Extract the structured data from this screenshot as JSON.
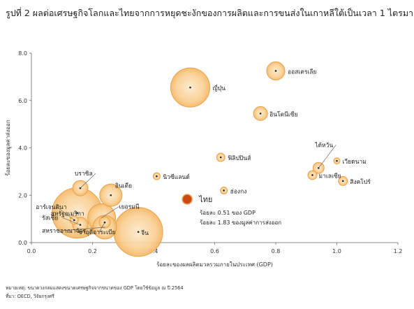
{
  "title": "รูปที่ 2 ผลต่อเศรษฐกิจโลกและไทยจากการหยุดชะงักของการผลิตและการขนส่งในเกาหลีใต้เป็นเวลา 1 ไตรมาส",
  "footnotes": [
    "หมายเหตุ: ขนาดวงกลมแสดงขนาดเศรษฐกิจจากขนาดของ GDP โดยใช้ข้อมูล ณ ปี 2564",
    "ที่มา: OECD, วิจัยกรุงศรี"
  ],
  "chart_data": {
    "type": "scatter",
    "xlabel": "ร้อยละของผลผลิตมวลรวมภายในประเทศ (GDP)",
    "ylabel": "ร้อยละของมูลค่าส่งออก",
    "xlim": [
      0,
      1.2
    ],
    "ylim": [
      0,
      8
    ],
    "x_ticks": [
      "0.0",
      "0.2",
      "0.4",
      "0.6",
      "0.8",
      "1.0",
      "1.2"
    ],
    "y_ticks": [
      "0.0",
      "2.0",
      "4.0",
      "6.0",
      "8.0"
    ],
    "grid": false,
    "bubble_color": "#f5b765",
    "highlight_color": "#c84a10",
    "points": [
      {
        "label": "จีน",
        "x": 0.35,
        "y": 0.45,
        "size": 35
      },
      {
        "label": "สหรัฐอเมริกา",
        "x": 0.15,
        "y": 1.25,
        "size": 36
      },
      {
        "label": "ญี่ปุ่น",
        "x": 0.52,
        "y": 6.55,
        "size": 28
      },
      {
        "label": "เยอรมนี",
        "x": 0.23,
        "y": 1.05,
        "size": 20
      },
      {
        "label": "อินเดีย",
        "x": 0.26,
        "y": 2.0,
        "size": 16
      },
      {
        "label": "บราซิล",
        "x": 0.16,
        "y": 2.3,
        "size": 11
      },
      {
        "label": "อาร์เจนตินา",
        "x": 0.14,
        "y": 0.95,
        "size": 6
      },
      {
        "label": "รัสเซีย",
        "x": 0.16,
        "y": 0.75,
        "size": 11
      },
      {
        "label": "สหราชอาณาจักร",
        "x": 0.24,
        "y": 0.65,
        "size": 17
      },
      {
        "label": "ซาอุดีอาระเบีย",
        "x": 0.24,
        "y": 0.85,
        "size": 8
      },
      {
        "label": "ออสเตรเลีย",
        "x": 0.8,
        "y": 7.25,
        "size": 13
      },
      {
        "label": "อินโดนีเซีย",
        "x": 0.75,
        "y": 5.45,
        "size": 10
      },
      {
        "label": "ฟิลิปปินส์",
        "x": 0.62,
        "y": 3.6,
        "size": 6
      },
      {
        "label": "นิวซีแลนด์",
        "x": 0.41,
        "y": 2.8,
        "size": 5
      },
      {
        "label": "ฮ่องกง",
        "x": 0.63,
        "y": 2.2,
        "size": 5
      },
      {
        "label": "ไต้หวัน",
        "x": 0.94,
        "y": 3.15,
        "size": 8
      },
      {
        "label": "เวียดนาม",
        "x": 1.0,
        "y": 3.45,
        "size": 4.5
      },
      {
        "label": "มาเลเซีย",
        "x": 0.92,
        "y": 2.85,
        "size": 6.5
      },
      {
        "label": "สิงคโปร์",
        "x": 1.02,
        "y": 2.6,
        "size": 6.5
      }
    ],
    "highlight": {
      "label": "ไทย",
      "x": 0.51,
      "y": 1.83,
      "size": 7,
      "notes": [
        "ร้อยละ 0.51 ของ GDP",
        "ร้อยละ 1.83 ของมูลค่าการส่งออก"
      ]
    }
  }
}
